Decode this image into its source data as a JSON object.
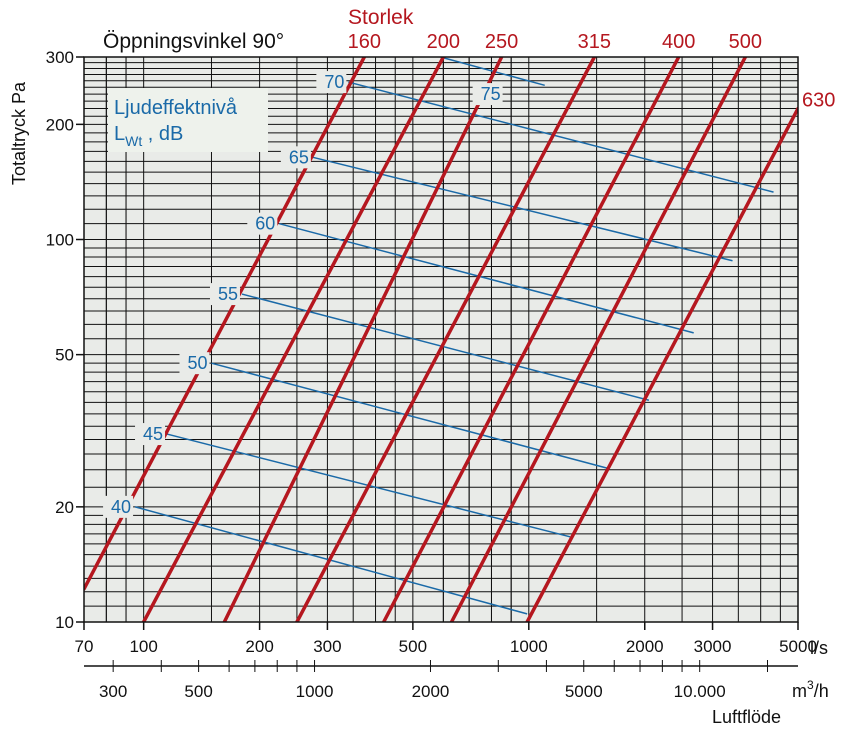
{
  "title": "Öppningsvinkel 90°",
  "size_title": "Storlek",
  "ylabel": "Totaltryck Pa",
  "xlabel_ls_unit": "l/s",
  "xlabel_m3h_unit": "m³/h",
  "xlabel_m3h_unit_base": "m",
  "xlabel_m3h_unit_sup": "3",
  "xlabel_m3h_unit_tail": "/h",
  "xlabel_bottom": "Luftflöde",
  "sound_legend_line1": "Ljudeffektnivå",
  "sound_legend_line2_a": "L",
  "sound_legend_line2_sub": "Wt",
  "sound_legend_line2_b": " , dB",
  "colors": {
    "size_line": "#b5171f",
    "sound_line": "#1a6aa8",
    "plot_bg": "#e9ebe8",
    "grid": "#111111"
  },
  "chart_data": {
    "type": "line",
    "x_scale": "log",
    "y_scale": "log",
    "xlim": [
      70,
      5000
    ],
    "ylim": [
      10,
      300
    ],
    "grid": true,
    "x_ticks": [
      {
        "value": 70,
        "label": "70"
      },
      {
        "value": 100,
        "label": "100"
      },
      {
        "value": 200,
        "label": "200"
      },
      {
        "value": 300,
        "label": "300"
      },
      {
        "value": 500,
        "label": "500"
      },
      {
        "value": 1000,
        "label": "1000"
      },
      {
        "value": 2000,
        "label": "2000"
      },
      {
        "value": 3000,
        "label": "3000"
      },
      {
        "value": 5000,
        "label": "5000"
      }
    ],
    "x2_ticks": [
      {
        "value": 300,
        "label": "300"
      },
      {
        "value": 500,
        "label": "500"
      },
      {
        "value": 1000,
        "label": "1000"
      },
      {
        "value": 2000,
        "label": "2000"
      },
      {
        "value": 5000,
        "label": "5000"
      },
      {
        "value": 10000,
        "label": "10.000"
      }
    ],
    "y_ticks": [
      {
        "value": 10,
        "label": "10"
      },
      {
        "value": 20,
        "label": "20"
      },
      {
        "value": 50,
        "label": "50"
      },
      {
        "value": 100,
        "label": "100"
      },
      {
        "value": 200,
        "label": "200"
      },
      {
        "value": 300,
        "label": "300"
      }
    ],
    "size_series": [
      {
        "name": "160",
        "points": [
          [
            70,
            12.2
          ],
          [
            374,
            300
          ]
        ]
      },
      {
        "name": "200",
        "points": [
          [
            100,
            10
          ],
          [
            600,
            300
          ]
        ]
      },
      {
        "name": "250",
        "points": [
          [
            162,
            10
          ],
          [
            850,
            300
          ]
        ]
      },
      {
        "name": "315",
        "points": [
          [
            250,
            10
          ],
          [
            1480,
            300
          ]
        ]
      },
      {
        "name": "400",
        "points": [
          [
            420,
            10
          ],
          [
            2450,
            300
          ]
        ]
      },
      {
        "name": "500",
        "points": [
          [
            630,
            10
          ],
          [
            3650,
            300
          ]
        ]
      },
      {
        "name": "630",
        "points": [
          [
            990,
            10
          ],
          [
            5000,
            220
          ]
        ]
      }
    ],
    "sound_series": [
      {
        "name": "40",
        "points": [
          [
            95,
            20
          ],
          [
            990,
            10.5
          ]
        ]
      },
      {
        "name": "45",
        "points": [
          [
            115,
            31
          ],
          [
            1280,
            16.7
          ]
        ]
      },
      {
        "name": "50",
        "points": [
          [
            150,
            47.5
          ],
          [
            1610,
            25.2
          ]
        ]
      },
      {
        "name": "55",
        "points": [
          [
            180,
            72
          ],
          [
            2050,
            38
          ]
        ]
      },
      {
        "name": "60",
        "points": [
          [
            225,
            110
          ],
          [
            2680,
            57
          ]
        ]
      },
      {
        "name": "65",
        "points": [
          [
            275,
            164
          ],
          [
            3380,
            88
          ]
        ]
      },
      {
        "name": "70",
        "points": [
          [
            340,
            258
          ],
          [
            4320,
            133
          ]
        ]
      },
      {
        "name": "75",
        "points": [
          [
            590,
            300
          ],
          [
            1100,
            253
          ]
        ]
      }
    ]
  }
}
